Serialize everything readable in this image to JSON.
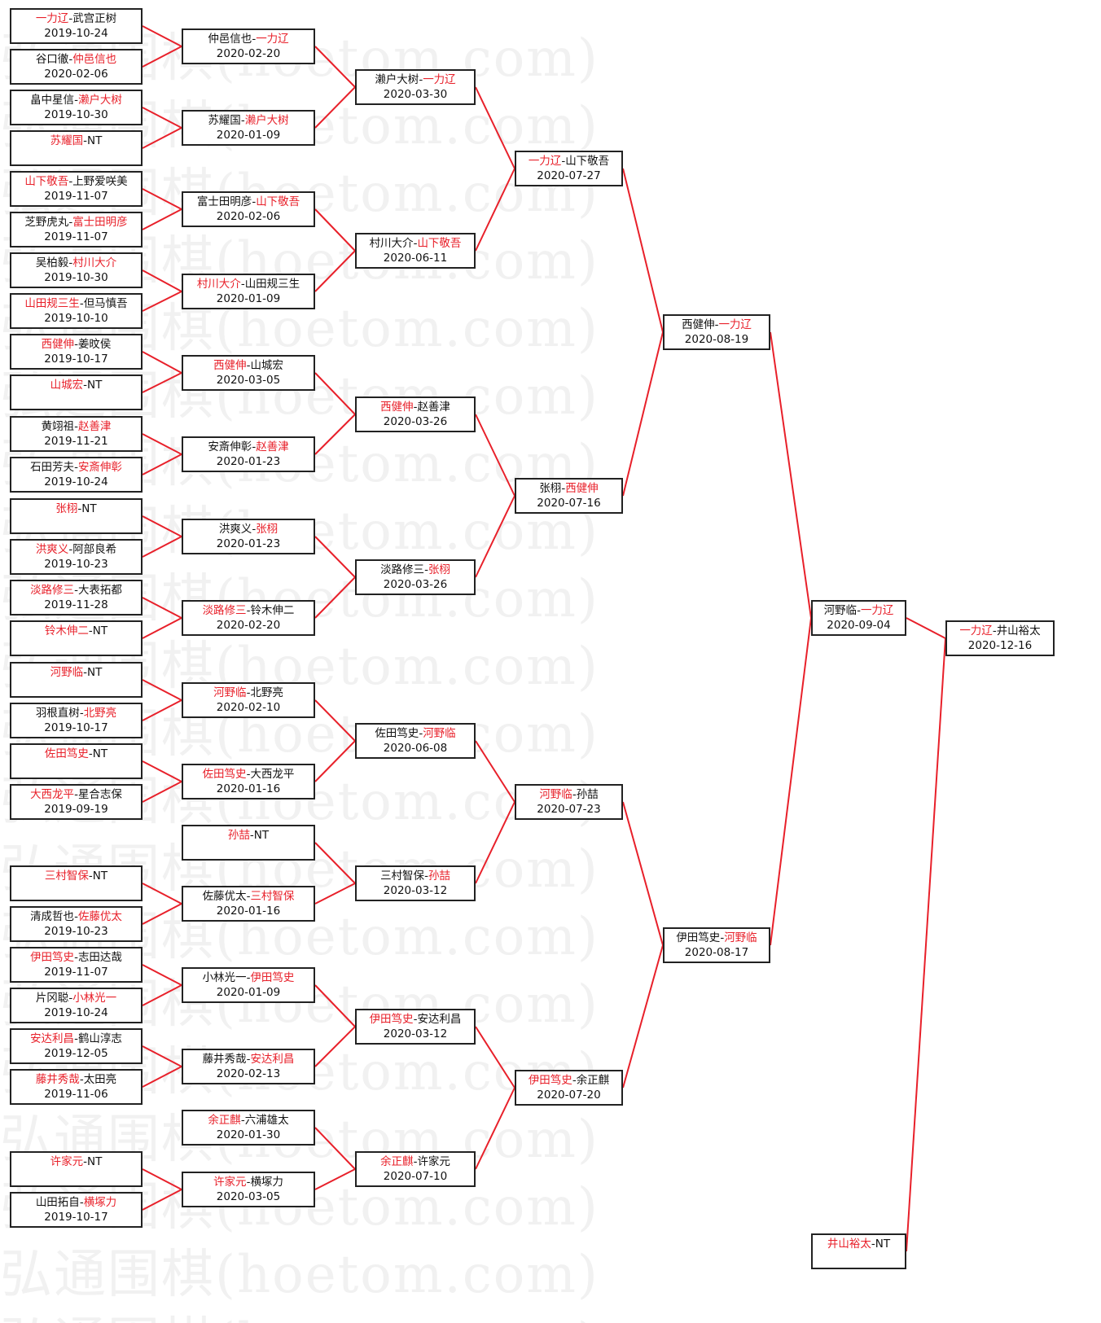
{
  "watermark": "弘通围棋(hoetom.com)",
  "colors": {
    "winner": "#e8202a",
    "line": "#e8202a",
    "border": "#222222"
  },
  "rounds": [
    [
      {
        "a": "一力辽",
        "b": "武宫正树",
        "date": "2019-10-24",
        "winner": 0
      },
      {
        "a": "谷口徹",
        "b": "仲邑信也",
        "date": "2020-02-06",
        "winner": 1
      },
      {
        "a": "畠中星信",
        "b": "濑户大树",
        "date": "2019-10-30",
        "winner": 1
      },
      {
        "a": "苏耀国",
        "b": "NT",
        "date": "",
        "winner": 0
      },
      {
        "a": "山下敬吾",
        "b": "上野爱咲美",
        "date": "2019-11-07",
        "winner": 0
      },
      {
        "a": "芝野虎丸",
        "b": "富士田明彦",
        "date": "2019-11-07",
        "winner": 1
      },
      {
        "a": "吴柏毅",
        "b": "村川大介",
        "date": "2019-10-30",
        "winner": 1
      },
      {
        "a": "山田规三生",
        "b": "但马慎吾",
        "date": "2019-10-10",
        "winner": 0
      },
      {
        "a": "西健伸",
        "b": "姜旼侯",
        "date": "2019-10-17",
        "winner": 0
      },
      {
        "a": "山城宏",
        "b": "NT",
        "date": "",
        "winner": 0
      },
      {
        "a": "黄翊祖",
        "b": "赵善津",
        "date": "2019-11-21",
        "winner": 1
      },
      {
        "a": "石田芳夫",
        "b": "安斎伸彰",
        "date": "2019-10-24",
        "winner": 1
      },
      {
        "a": "张栩",
        "b": "NT",
        "date": "",
        "winner": 0
      },
      {
        "a": "洪爽义",
        "b": "阿部良希",
        "date": "2019-10-23",
        "winner": 0
      },
      {
        "a": "淡路修三",
        "b": "大表拓都",
        "date": "2019-11-28",
        "winner": 0
      },
      {
        "a": "铃木伸二",
        "b": "NT",
        "date": "",
        "winner": 0
      },
      {
        "a": "河野临",
        "b": "NT",
        "date": "",
        "winner": 0
      },
      {
        "a": "羽根直树",
        "b": "北野亮",
        "date": "2019-10-17",
        "winner": 1
      },
      {
        "a": "佐田笃史",
        "b": "NT",
        "date": "",
        "winner": 0
      },
      {
        "a": "大西龙平",
        "b": "星合志保",
        "date": "2019-09-19",
        "winner": 0
      },
      {
        "a": "三村智保",
        "b": "NT",
        "date": "",
        "winner": 0
      },
      {
        "a": "清成哲也",
        "b": "佐藤优太",
        "date": "2019-10-23",
        "winner": 1
      },
      {
        "a": "伊田笃史",
        "b": "志田达哉",
        "date": "2019-11-07",
        "winner": 0
      },
      {
        "a": "片冈聪",
        "b": "小林光一",
        "date": "2019-10-24",
        "winner": 1
      },
      {
        "a": "安达利昌",
        "b": "鹤山淳志",
        "date": "2019-12-05",
        "winner": 0
      },
      {
        "a": "藤井秀哉",
        "b": "太田亮",
        "date": "2019-11-06",
        "winner": 0
      },
      {
        "a": "许家元",
        "b": "NT",
        "date": "",
        "winner": 0
      },
      {
        "a": "山田拓自",
        "b": "横塚力",
        "date": "2019-10-17",
        "winner": 1
      }
    ],
    [
      {
        "a": "仲邑信也",
        "b": "一力辽",
        "date": "2020-02-20",
        "winner": 1
      },
      {
        "a": "苏耀国",
        "b": "濑户大树",
        "date": "2020-01-09",
        "winner": 1
      },
      {
        "a": "富士田明彦",
        "b": "山下敬吾",
        "date": "2020-02-06",
        "winner": 1
      },
      {
        "a": "村川大介",
        "b": "山田规三生",
        "date": "2020-01-09",
        "winner": 0
      },
      {
        "a": "西健伸",
        "b": "山城宏",
        "date": "2020-03-05",
        "winner": 0
      },
      {
        "a": "安斎伸彰",
        "b": "赵善津",
        "date": "2020-01-23",
        "winner": 1
      },
      {
        "a": "洪爽义",
        "b": "张栩",
        "date": "2020-01-23",
        "winner": 1
      },
      {
        "a": "淡路修三",
        "b": "铃木伸二",
        "date": "2020-02-20",
        "winner": 0
      },
      {
        "a": "河野临",
        "b": "北野亮",
        "date": "2020-02-10",
        "winner": 0
      },
      {
        "a": "佐田笃史",
        "b": "大西龙平",
        "date": "2020-01-16",
        "winner": 0
      },
      {
        "a": "孙喆",
        "b": "NT",
        "date": "",
        "winner": 0
      },
      {
        "a": "佐藤优太",
        "b": "三村智保",
        "date": "2020-01-16",
        "winner": 1
      },
      {
        "a": "小林光一",
        "b": "伊田笃史",
        "date": "2020-01-09",
        "winner": 1
      },
      {
        "a": "藤井秀哉",
        "b": "安达利昌",
        "date": "2020-02-13",
        "winner": 1
      },
      {
        "a": "余正麒",
        "b": "六浦雄太",
        "date": "2020-01-30",
        "winner": 0
      },
      {
        "a": "许家元",
        "b": "横塚力",
        "date": "2020-03-05",
        "winner": 0
      }
    ],
    [
      {
        "a": "濑户大树",
        "b": "一力辽",
        "date": "2020-03-30",
        "winner": 1
      },
      {
        "a": "村川大介",
        "b": "山下敬吾",
        "date": "2020-06-11",
        "winner": 1
      },
      {
        "a": "西健伸",
        "b": "赵善津",
        "date": "2020-03-26",
        "winner": 0
      },
      {
        "a": "淡路修三",
        "b": "张栩",
        "date": "2020-03-26",
        "winner": 1
      },
      {
        "a": "佐田笃史",
        "b": "河野临",
        "date": "2020-06-08",
        "winner": 1
      },
      {
        "a": "三村智保",
        "b": "孙喆",
        "date": "2020-03-12",
        "winner": 1
      },
      {
        "a": "伊田笃史",
        "b": "安达利昌",
        "date": "2020-03-12",
        "winner": 0
      },
      {
        "a": "余正麒",
        "b": "许家元",
        "date": "2020-07-10",
        "winner": 0
      }
    ],
    [
      {
        "a": "一力辽",
        "b": "山下敬吾",
        "date": "2020-07-27",
        "winner": 0
      },
      {
        "a": "张栩",
        "b": "西健伸",
        "date": "2020-07-16",
        "winner": 1
      },
      {
        "a": "河野临",
        "b": "孙喆",
        "date": "2020-07-23",
        "winner": 0
      },
      {
        "a": "伊田笃史",
        "b": "余正麒",
        "date": "2020-07-20",
        "winner": 0
      }
    ],
    [
      {
        "a": "西健伸",
        "b": "一力辽",
        "date": "2020-08-19",
        "winner": 1
      },
      {
        "a": "伊田笃史",
        "b": "河野临",
        "date": "2020-08-17",
        "winner": 1
      }
    ],
    [
      {
        "a": "河野临",
        "b": "一力辽",
        "date": "2020-09-04",
        "winner": 1
      },
      {
        "a": "井山裕太",
        "b": "NT",
        "date": "",
        "winner": 0
      }
    ],
    [
      {
        "a": "一力辽",
        "b": "井山裕太",
        "date": "2020-12-16",
        "winner": 0
      }
    ]
  ]
}
